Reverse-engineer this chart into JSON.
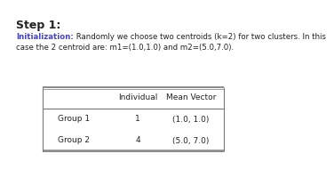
{
  "title": "Step 1:",
  "title_fontsize": 9,
  "init_label": "Initialization:",
  "init_color": "#4444cc",
  "line1_rest": " Randomly we choose two centroids (k=2) for two clusters. In this",
  "line2": "case the 2 centroid are: m1=(1.0,1.0) and m2=(5.0,7.0).",
  "body_fontsize": 6.2,
  "table_col_labels": [
    "",
    "Individual",
    "Mean Vector"
  ],
  "table_rows": [
    [
      "Group 1",
      "1",
      "(1.0, 1.0)"
    ],
    [
      "Group 2",
      "4",
      "(5.0, 7.0)"
    ]
  ],
  "table_fontsize": 6.5,
  "bg_color": "#ffffff",
  "text_color": "#222222",
  "line_color": "#777777"
}
